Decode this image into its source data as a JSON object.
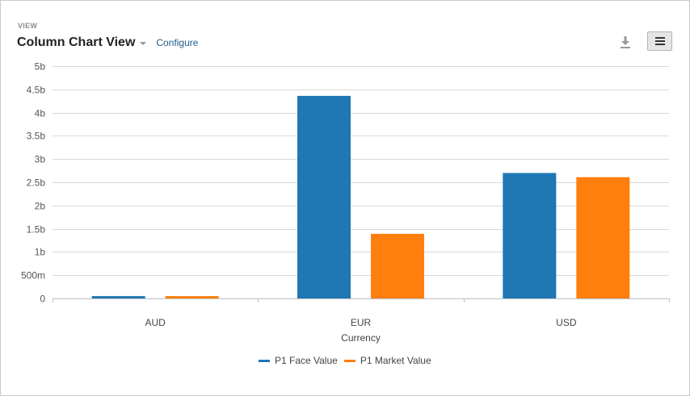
{
  "header": {
    "section_label": "VIEW",
    "title": "Column Chart View",
    "configure_label": "Configure"
  },
  "icons": {
    "download": "download-icon",
    "menu": "hamburger-menu-icon",
    "title_dropdown": "caret-down-icon"
  },
  "colors": {
    "series_1": "#1f77b4",
    "series_2": "#ff7f0e",
    "link": "#1f5d8a"
  },
  "chart_data": {
    "type": "bar",
    "xlabel": "Currency",
    "ylabel": "",
    "categories": [
      "AUD",
      "EUR",
      "USD"
    ],
    "series": [
      {
        "name": "P1 Face Value",
        "values": [
          50000000,
          4360000000,
          2700000000
        ]
      },
      {
        "name": "P1 Market Value",
        "values": [
          50000000,
          1390000000,
          2610000000
        ]
      }
    ],
    "ylim": [
      0,
      5000000000
    ],
    "yticks": [
      {
        "value": 0,
        "label": "0"
      },
      {
        "value": 500000000,
        "label": "500m"
      },
      {
        "value": 1000000000,
        "label": "1b"
      },
      {
        "value": 1500000000,
        "label": "1.5b"
      },
      {
        "value": 2000000000,
        "label": "2b"
      },
      {
        "value": 2500000000,
        "label": "2.5b"
      },
      {
        "value": 3000000000,
        "label": "3b"
      },
      {
        "value": 3500000000,
        "label": "3.5b"
      },
      {
        "value": 4000000000,
        "label": "4b"
      },
      {
        "value": 4500000000,
        "label": "4.5b"
      },
      {
        "value": 5000000000,
        "label": "5b"
      }
    ],
    "grid": true,
    "legend_position": "bottom-center"
  }
}
